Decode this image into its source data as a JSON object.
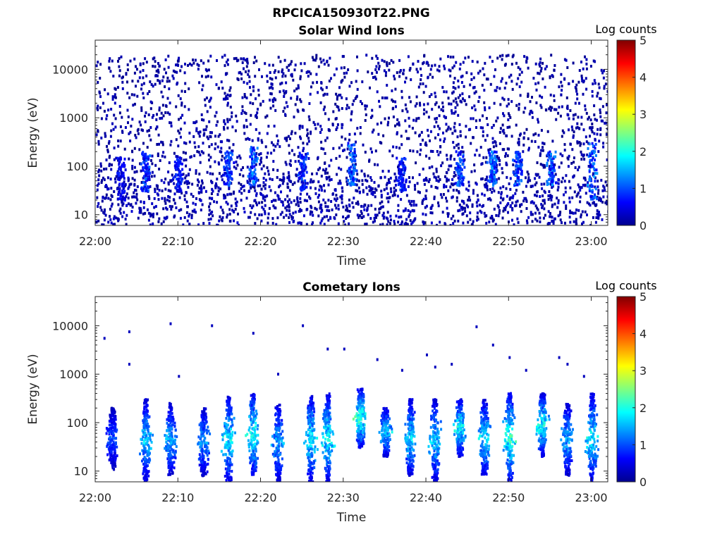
{
  "figure": {
    "title": "RPCICA150930T22.PNG"
  },
  "chart_data": [
    {
      "type": "heatmap",
      "title": "Solar Wind Ions",
      "xlabel": "Time",
      "ylabel": "Energy (eV)",
      "y_scale": "log",
      "xlim": [
        "22:00",
        "23:02"
      ],
      "ylim": [
        6,
        40000
      ],
      "x_ticks": [
        "22:00",
        "22:10",
        "22:20",
        "22:30",
        "22:40",
        "22:50",
        "23:00"
      ],
      "y_ticks": [
        10,
        100,
        1000,
        10000
      ],
      "y_tick_labels": [
        "10",
        "100",
        "1000",
        "10000"
      ],
      "colorbar": {
        "label": "Log counts",
        "range": [
          0,
          5
        ],
        "ticks": [
          "0",
          "1",
          "2",
          "3",
          "4",
          "5"
        ],
        "colormap": "jet"
      },
      "notes": "Sparse scattered counts (log counts ~0-0.5) spanning 6 eV to 20000 eV; denser low-energy features (~20-300 eV) reaching log counts ~1.5",
      "features": [
        {
          "time": "22:03",
          "energy_min": 20,
          "energy_max": 150,
          "log_counts": 0.8
        },
        {
          "time": "22:06",
          "energy_min": 30,
          "energy_max": 200,
          "log_counts": 1.2
        },
        {
          "time": "22:10",
          "energy_min": 30,
          "energy_max": 150,
          "log_counts": 1.0
        },
        {
          "time": "22:16",
          "energy_min": 40,
          "energy_max": 200,
          "log_counts": 1.2
        },
        {
          "time": "22:19",
          "energy_min": 40,
          "energy_max": 250,
          "log_counts": 1.5
        },
        {
          "time": "22:25",
          "energy_min": 30,
          "energy_max": 200,
          "log_counts": 1.1
        },
        {
          "time": "22:31",
          "energy_min": 40,
          "energy_max": 300,
          "log_counts": 1.4
        },
        {
          "time": "22:37",
          "energy_min": 30,
          "energy_max": 150,
          "log_counts": 1.0
        },
        {
          "time": "22:44",
          "energy_min": 40,
          "energy_max": 200,
          "log_counts": 1.3
        },
        {
          "time": "22:48",
          "energy_min": 40,
          "energy_max": 200,
          "log_counts": 1.5
        },
        {
          "time": "22:51",
          "energy_min": 40,
          "energy_max": 200,
          "log_counts": 1.3
        },
        {
          "time": "22:55",
          "energy_min": 40,
          "energy_max": 200,
          "log_counts": 1.4
        },
        {
          "time": "23:00",
          "energy_min": 20,
          "energy_max": 300,
          "log_counts": 1.5
        }
      ]
    },
    {
      "type": "heatmap",
      "title": "Cometary Ions",
      "xlabel": "Time",
      "ylabel": "Energy (eV)",
      "y_scale": "log",
      "xlim": [
        "22:00",
        "23:02"
      ],
      "ylim": [
        6,
        40000
      ],
      "x_ticks": [
        "22:00",
        "22:10",
        "22:20",
        "22:30",
        "22:40",
        "22:50",
        "23:00"
      ],
      "y_ticks": [
        10,
        100,
        1000,
        10000
      ],
      "y_tick_labels": [
        "10",
        "100",
        "1000",
        "10000"
      ],
      "colorbar": {
        "label": "Log counts",
        "range": [
          0,
          5
        ],
        "ticks": [
          "0",
          "1",
          "2",
          "3",
          "4",
          "5"
        ],
        "colormap": "jet"
      },
      "notes": "Quasi-periodic bursts of cometary ions between ~6 eV and ~600 eV, peak log counts ~2.5 near 40-150 eV; isolated counts above 1000 eV",
      "bursts": [
        {
          "time": "22:02",
          "energy_min": 10,
          "energy_max": 200,
          "log_counts": 1.2
        },
        {
          "time": "22:06",
          "energy_min": 6,
          "energy_max": 300,
          "log_counts": 2.0
        },
        {
          "time": "22:09",
          "energy_min": 8,
          "energy_max": 250,
          "log_counts": 1.8
        },
        {
          "time": "22:13",
          "energy_min": 8,
          "energy_max": 200,
          "log_counts": 1.7
        },
        {
          "time": "22:16",
          "energy_min": 6,
          "energy_max": 350,
          "log_counts": 2.2
        },
        {
          "time": "22:19",
          "energy_min": 8,
          "energy_max": 400,
          "log_counts": 2.4
        },
        {
          "time": "22:22",
          "energy_min": 6,
          "energy_max": 250,
          "log_counts": 1.8
        },
        {
          "time": "22:26",
          "energy_min": 6,
          "energy_max": 350,
          "log_counts": 2.2
        },
        {
          "time": "22:28",
          "energy_min": 6,
          "energy_max": 400,
          "log_counts": 2.3
        },
        {
          "time": "22:32",
          "energy_min": 30,
          "energy_max": 500,
          "log_counts": 2.5
        },
        {
          "time": "22:35",
          "energy_min": 20,
          "energy_max": 200,
          "log_counts": 2.0
        },
        {
          "time": "22:38",
          "energy_min": 8,
          "energy_max": 300,
          "log_counts": 2.1
        },
        {
          "time": "22:41",
          "energy_min": 6,
          "energy_max": 300,
          "log_counts": 2.0
        },
        {
          "time": "22:44",
          "energy_min": 20,
          "energy_max": 300,
          "log_counts": 2.3
        },
        {
          "time": "22:47",
          "energy_min": 8,
          "energy_max": 300,
          "log_counts": 2.1
        },
        {
          "time": "22:50",
          "energy_min": 6,
          "energy_max": 400,
          "log_counts": 2.5
        },
        {
          "time": "22:54",
          "energy_min": 20,
          "energy_max": 400,
          "log_counts": 2.3
        },
        {
          "time": "22:57",
          "energy_min": 8,
          "energy_max": 250,
          "log_counts": 1.8
        },
        {
          "time": "23:00",
          "energy_min": 6,
          "energy_max": 400,
          "log_counts": 2.2
        }
      ],
      "isolated_counts": [
        {
          "time": "22:01",
          "energy": 5500
        },
        {
          "time": "22:04",
          "energy": 7500
        },
        {
          "time": "22:04",
          "energy": 1600
        },
        {
          "time": "22:09",
          "energy": 11000
        },
        {
          "time": "22:10",
          "energy": 900
        },
        {
          "time": "22:14",
          "energy": 10000
        },
        {
          "time": "22:19",
          "energy": 7000
        },
        {
          "time": "22:22",
          "energy": 1000
        },
        {
          "time": "22:25",
          "energy": 10000
        },
        {
          "time": "22:28",
          "energy": 3300
        },
        {
          "time": "22:30",
          "energy": 3300
        },
        {
          "time": "22:34",
          "energy": 2000
        },
        {
          "time": "22:37",
          "energy": 1200
        },
        {
          "time": "22:40",
          "energy": 2500
        },
        {
          "time": "22:41",
          "energy": 1400
        },
        {
          "time": "22:43",
          "energy": 1600
        },
        {
          "time": "22:46",
          "energy": 9500
        },
        {
          "time": "22:48",
          "energy": 4000
        },
        {
          "time": "22:50",
          "energy": 2200
        },
        {
          "time": "22:52",
          "energy": 1200
        },
        {
          "time": "22:56",
          "energy": 2200
        },
        {
          "time": "22:57",
          "energy": 1600
        },
        {
          "time": "22:59",
          "energy": 900
        }
      ]
    }
  ]
}
